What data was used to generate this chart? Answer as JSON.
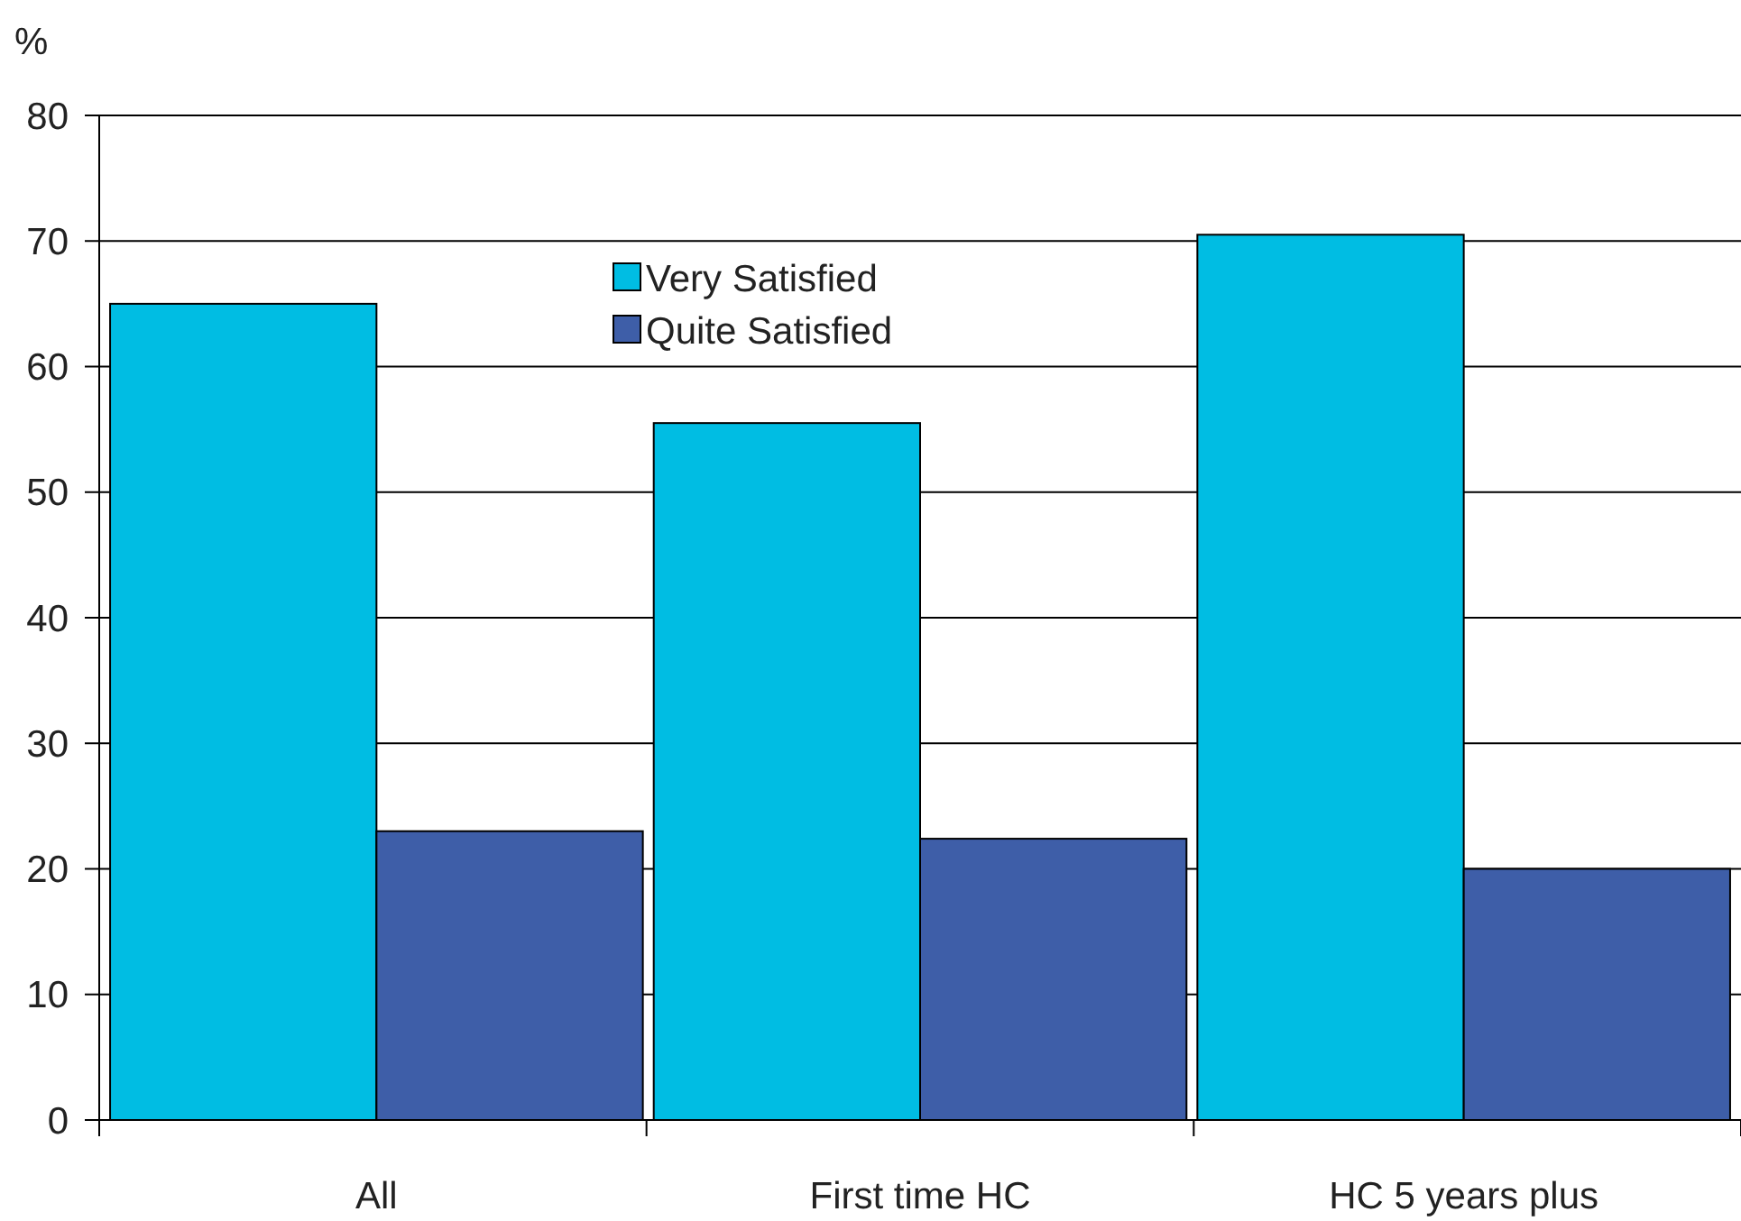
{
  "chart_data": {
    "type": "bar",
    "ylabel": "%",
    "categories": [
      "All",
      "First time HC",
      "HC 5 years plus"
    ],
    "series": [
      {
        "name": "Very Satisfied",
        "color": "#00bde3",
        "values": [
          65,
          55.5,
          70.5
        ]
      },
      {
        "name": "Quite Satisfied",
        "color": "#3e5ea8",
        "values": [
          23,
          22.4,
          20
        ]
      }
    ],
    "ylim": [
      0,
      80
    ],
    "yticks": [
      0,
      10,
      20,
      30,
      40,
      50,
      60,
      70,
      80
    ],
    "grid": "y",
    "legend": "top"
  }
}
